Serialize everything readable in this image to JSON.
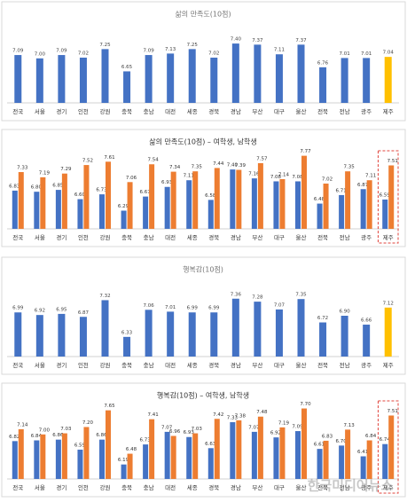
{
  "chart_data": [
    {
      "type": "bar",
      "title": "삶의 만족도(10점)",
      "categories": [
        "전국",
        "서울",
        "경기",
        "인천",
        "강원",
        "충북",
        "충남",
        "대전",
        "세종",
        "경북",
        "경남",
        "부산",
        "대구",
        "울산",
        "전북",
        "전남",
        "광주",
        "제주"
      ],
      "values": [
        7.09,
        7.0,
        7.09,
        7.02,
        7.25,
        6.65,
        7.09,
        7.13,
        7.25,
        7.02,
        7.4,
        7.37,
        7.11,
        7.37,
        6.76,
        7.01,
        7.01,
        7.04
      ],
      "value_labels": [
        "7.09",
        "7.00",
        "7.09",
        "7.02",
        "7.25",
        "6.65",
        "7.09",
        "7.13",
        "7.25",
        "7.02",
        "7.40",
        "7.37",
        "7.11",
        "7.37",
        "6.76",
        "7.01",
        "7.01",
        "7.04"
      ],
      "colors": [
        "#4472c4",
        "#4472c4",
        "#4472c4",
        "#4472c4",
        "#4472c4",
        "#4472c4",
        "#4472c4",
        "#4472c4",
        "#4472c4",
        "#4472c4",
        "#4472c4",
        "#4472c4",
        "#4472c4",
        "#4472c4",
        "#4472c4",
        "#4472c4",
        "#4472c4",
        "#ffc000"
      ],
      "ylim": [
        5.8,
        8.0
      ]
    },
    {
      "type": "grouped_bar",
      "title": "삶의 만족도(10점) – 여학생, 남학생",
      "categories": [
        "전국",
        "서울",
        "경기",
        "인천",
        "강원",
        "충북",
        "충남",
        "대전",
        "세종",
        "경북",
        "경남",
        "부산",
        "대구",
        "울산",
        "전북",
        "전남",
        "광주",
        "제주"
      ],
      "series": [
        {
          "color": "#4472c4",
          "values": [
            6.83,
            6.8,
            6.85,
            6.6,
            6.73,
            6.29,
            6.67,
            6.93,
            7.11,
            6.58,
            7.4,
            7.16,
            7.08,
            7.08,
            6.48,
            6.71,
            6.87,
            6.59
          ],
          "value_labels": [
            "6.83",
            "6.80",
            "6.85",
            "6.60",
            "6.73",
            "6.29",
            "6.67",
            "6.93",
            "7.11",
            "6.58",
            "7.40",
            "7.16",
            "7.08",
            "7.08",
            "6.48",
            "6.71",
            "6.87",
            "6.59"
          ]
        },
        {
          "color": "#ed7d31",
          "values": [
            7.33,
            7.19,
            7.29,
            7.52,
            7.61,
            7.06,
            7.54,
            7.34,
            7.35,
            7.44,
            7.39,
            7.57,
            7.14,
            7.77,
            7.02,
            7.35,
            7.11,
            7.51
          ],
          "value_labels": [
            "7.33",
            "7.19",
            "7.29",
            "7.52",
            "7.61",
            "7.06",
            "7.54",
            "7.34",
            "7.35",
            "7.44",
            "7.39",
            "7.57",
            "7.14",
            "7.77",
            "7.02",
            "7.35",
            "7.11",
            "7.51"
          ]
        }
      ],
      "ylim": [
        5.8,
        8.0
      ]
    },
    {
      "type": "bar",
      "title": "행복감(10점)",
      "categories": [
        "전국",
        "서울",
        "경기",
        "인천",
        "강원",
        "충북",
        "충남",
        "대전",
        "세종",
        "경북",
        "경남",
        "부산",
        "대구",
        "울산",
        "전북",
        "전남",
        "광주",
        "제주"
      ],
      "values": [
        6.99,
        6.92,
        6.95,
        6.87,
        7.32,
        6.33,
        7.06,
        7.01,
        6.99,
        6.99,
        7.36,
        7.28,
        7.07,
        7.35,
        6.72,
        6.9,
        6.66,
        7.12
      ],
      "value_labels": [
        "6.99",
        "6.92",
        "6.95",
        "6.87",
        "7.32",
        "6.33",
        "7.06",
        "7.01",
        "6.99",
        "6.99",
        "7.36",
        "7.28",
        "7.07",
        "7.35",
        "6.72",
        "6.90",
        "6.66",
        "7.12"
      ],
      "colors": [
        "#4472c4",
        "#4472c4",
        "#4472c4",
        "#4472c4",
        "#4472c4",
        "#4472c4",
        "#4472c4",
        "#4472c4",
        "#4472c4",
        "#4472c4",
        "#4472c4",
        "#4472c4",
        "#4472c4",
        "#4472c4",
        "#4472c4",
        "#4472c4",
        "#4472c4",
        "#ffc000"
      ],
      "ylim": [
        5.8,
        8.0
      ]
    },
    {
      "type": "grouped_bar",
      "title": "행복감(10점) – 여학생, 남학생",
      "categories": [
        "전국",
        "서울",
        "경기",
        "인천",
        "강원",
        "충북",
        "충남",
        "대전",
        "세종",
        "경북",
        "경남",
        "부산",
        "대구",
        "울산",
        "전북",
        "전남",
        "광주",
        "제주"
      ],
      "series": [
        {
          "color": "#4472c4",
          "values": [
            6.82,
            6.84,
            6.86,
            6.59,
            6.86,
            6.19,
            6.73,
            7.07,
            6.93,
            6.63,
            7.33,
            7.07,
            6.92,
            7.09,
            6.61,
            6.7,
            6.41,
            6.74
          ],
          "value_labels": [
            "6.82",
            "6.84",
            "6.86",
            "6.59",
            "6.86",
            "6.19",
            "6.73",
            "7.07",
            "6.93",
            "6.63",
            "7.33",
            "7.07",
            "6.92",
            "7.09",
            "6.61",
            "6.70",
            "6.41",
            "6.74"
          ]
        },
        {
          "color": "#ed7d31",
          "values": [
            7.14,
            7.0,
            7.03,
            7.2,
            7.65,
            6.48,
            7.41,
            6.96,
            7.03,
            7.42,
            7.38,
            7.48,
            7.19,
            7.7,
            6.83,
            7.13,
            6.84,
            7.51
          ],
          "value_labels": [
            "7.14",
            "7.00",
            "7.03",
            "7.20",
            "7.65",
            "6.48",
            "7.41",
            "6.96",
            "7.03",
            "7.42",
            "7.38",
            "7.48",
            "7.19",
            "7.70",
            "6.83",
            "7.13",
            "6.84",
            "7.51"
          ]
        }
      ],
      "ylim": [
        5.8,
        8.0
      ]
    }
  ],
  "watermark": "한국미디어뉴스"
}
